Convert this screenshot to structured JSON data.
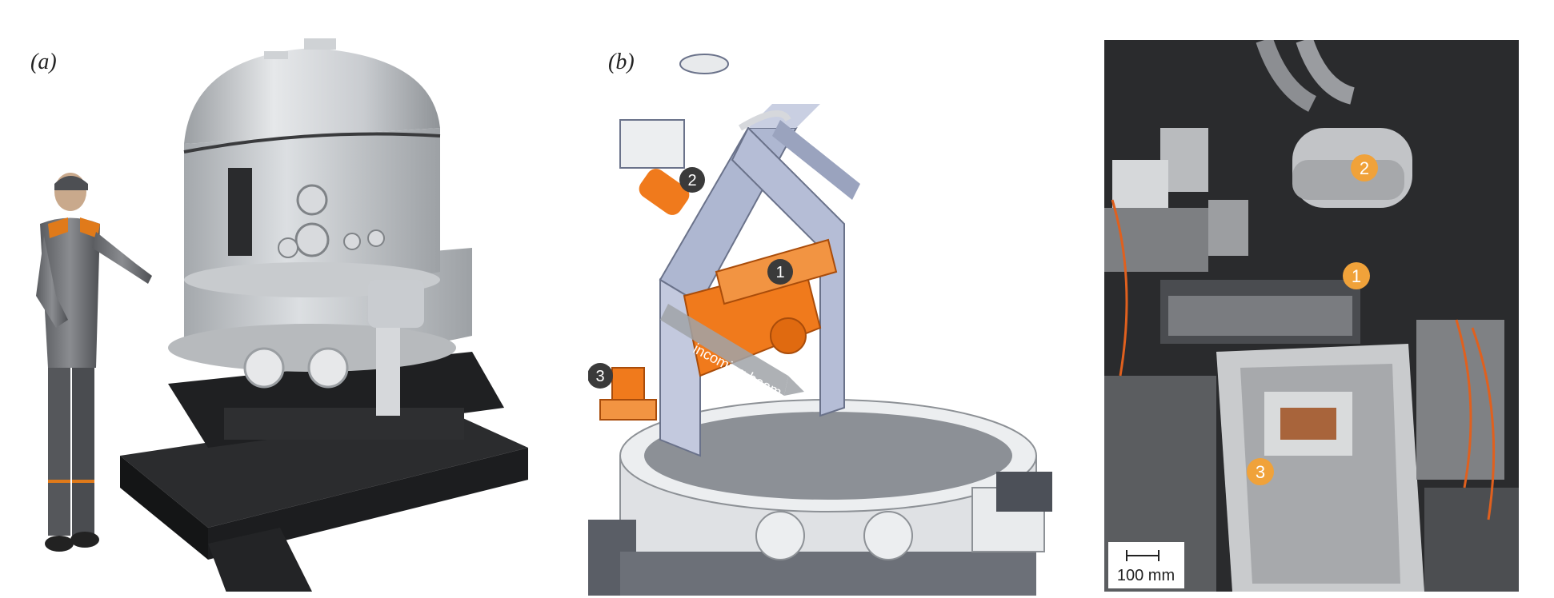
{
  "panels": [
    {
      "label": "(a)"
    },
    {
      "label": "(b)"
    }
  ],
  "cad_annotations": {
    "markers": [
      "1",
      "2",
      "3"
    ],
    "beam_label": "incoming beam"
  },
  "photo_annotations": {
    "markers": [
      "1",
      "2",
      "3"
    ],
    "scale_bar_label": "100 mm"
  },
  "colors": {
    "cad_gray": "#d9dbde",
    "cad_orange": "#f07a1c",
    "dark_marker": "#3a3a3a",
    "photo_marker": "#f0a23a"
  }
}
